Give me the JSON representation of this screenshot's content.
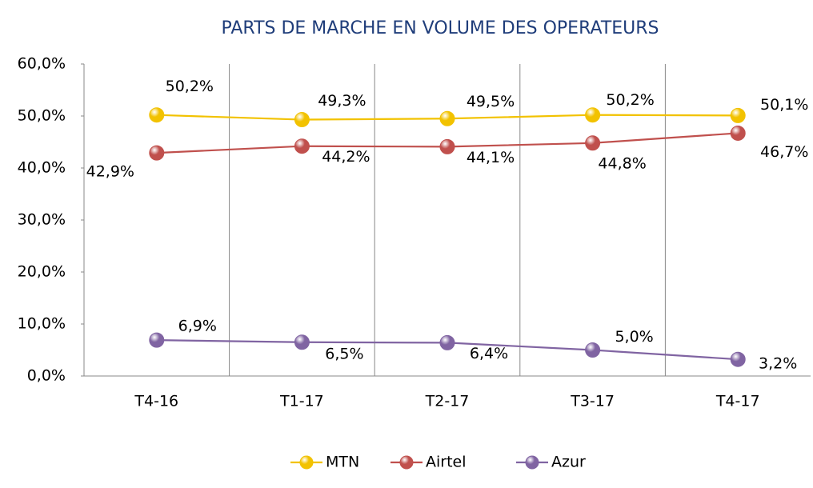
{
  "chart_data": {
    "type": "line",
    "title": "PARTS DE MARCHE EN VOLUME DES OPERATEURS",
    "categories": [
      "T4-16",
      "T1-17",
      "T2-17",
      "T3-17",
      "T4-17"
    ],
    "series": [
      {
        "name": "MTN",
        "color": "#f2c200",
        "values": [
          50.2,
          49.3,
          49.5,
          50.2,
          50.1
        ],
        "value_labels": [
          "50,2%",
          "49,3%",
          "49,5%",
          "50,2%",
          "50,1%"
        ]
      },
      {
        "name": "Airtel",
        "color": "#c0504d",
        "values": [
          42.9,
          44.2,
          44.1,
          44.8,
          46.7
        ],
        "value_labels": [
          "42,9%",
          "44,2%",
          "44,1%",
          "44,8%",
          "46,7%"
        ]
      },
      {
        "name": "Azur",
        "color": "#8064a2",
        "values": [
          6.9,
          6.5,
          6.4,
          5.0,
          3.2
        ],
        "value_labels": [
          "6,9%",
          "6,5%",
          "6,4%",
          "5,0%",
          "3,2%"
        ]
      }
    ],
    "ylim": [
      0,
      60
    ],
    "yticks": [
      {
        "value": 0,
        "label": "0,0%"
      },
      {
        "value": 10,
        "label": "10,0%"
      },
      {
        "value": 20,
        "label": "20,0%"
      },
      {
        "value": 30,
        "label": "30,0%"
      },
      {
        "value": 40,
        "label": "40,0%"
      },
      {
        "value": 50,
        "label": "50,0%"
      },
      {
        "value": 60,
        "label": "60,0%"
      }
    ],
    "grid": false,
    "legend": "bottom"
  }
}
